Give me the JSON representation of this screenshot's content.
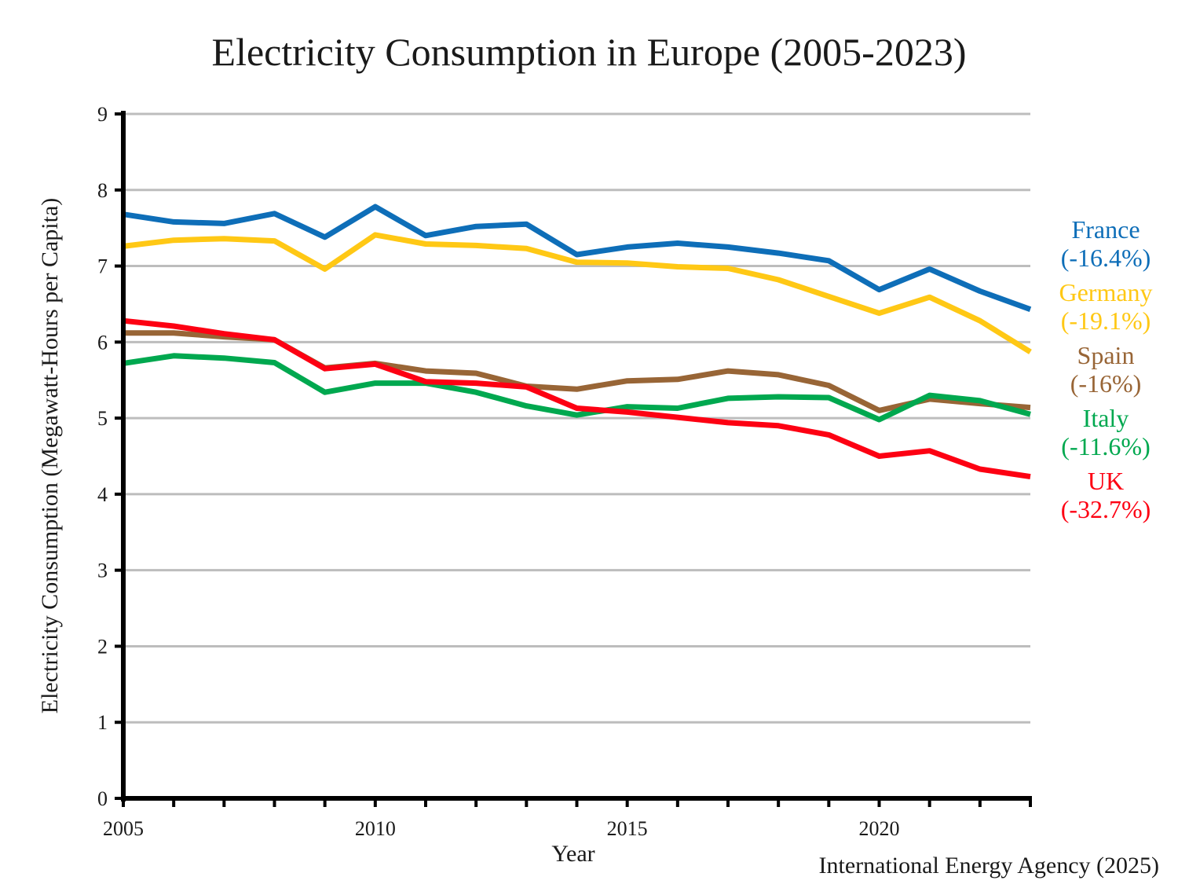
{
  "chart_data": {
    "type": "line",
    "title": "Electricity Consumption in Europe (2005-2023)",
    "xlabel": "Year",
    "ylabel": "Electricity Consumption (Megawatt-Hours per Capita)",
    "source": "International Energy Agency (2025)",
    "xlim": [
      2005,
      2023
    ],
    "ylim": [
      0,
      9
    ],
    "x_ticks": [
      2005,
      2010,
      2015,
      2020
    ],
    "y_ticks": [
      0,
      1,
      2,
      3,
      4,
      5,
      6,
      7,
      8,
      9
    ],
    "grid": true,
    "legend_placement": "right",
    "x": [
      2005,
      2006,
      2007,
      2008,
      2009,
      2010,
      2011,
      2012,
      2013,
      2014,
      2015,
      2016,
      2017,
      2018,
      2019,
      2020,
      2021,
      2022,
      2023
    ],
    "series": [
      {
        "name": "France",
        "change": "(-16.4%)",
        "color": "#0e6eb8",
        "values": [
          7.68,
          7.58,
          7.56,
          7.69,
          7.38,
          7.78,
          7.4,
          7.52,
          7.55,
          7.15,
          7.25,
          7.3,
          7.25,
          7.17,
          7.07,
          6.69,
          6.96,
          6.67,
          6.43
        ]
      },
      {
        "name": "Germany",
        "change": "(-19.1%)",
        "color": "#ffc815",
        "values": [
          7.26,
          7.34,
          7.36,
          7.33,
          6.96,
          7.41,
          7.29,
          7.27,
          7.23,
          7.05,
          7.04,
          6.99,
          6.97,
          6.82,
          6.6,
          6.38,
          6.59,
          6.28,
          5.87
        ]
      },
      {
        "name": "Spain",
        "change": "(-16%)",
        "color": "#986536",
        "values": [
          6.12,
          6.12,
          6.07,
          6.03,
          5.66,
          5.72,
          5.62,
          5.59,
          5.42,
          5.38,
          5.49,
          5.51,
          5.62,
          5.57,
          5.43,
          5.1,
          5.25,
          5.19,
          5.14
        ]
      },
      {
        "name": "Italy",
        "change": "(-11.6%)",
        "color": "#00a84f",
        "values": [
          5.72,
          5.82,
          5.79,
          5.73,
          5.34,
          5.46,
          5.46,
          5.34,
          5.16,
          5.04,
          5.15,
          5.13,
          5.26,
          5.28,
          5.27,
          4.98,
          5.3,
          5.23,
          5.05
        ]
      },
      {
        "name": "UK",
        "change": "(-32.7%)",
        "color": "#fd0012",
        "values": [
          6.28,
          6.21,
          6.11,
          6.03,
          5.65,
          5.71,
          5.48,
          5.46,
          5.41,
          5.13,
          5.08,
          5.01,
          4.94,
          4.9,
          4.78,
          4.5,
          4.57,
          4.33,
          4.23
        ]
      }
    ]
  }
}
